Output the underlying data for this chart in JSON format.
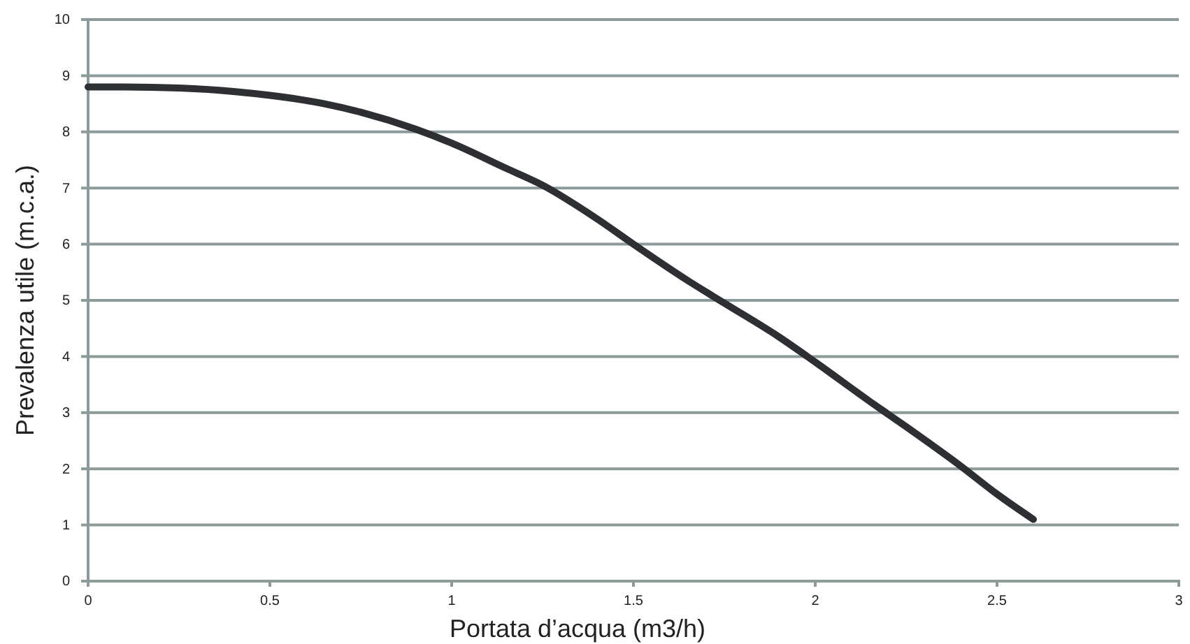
{
  "chart_data": {
    "type": "line",
    "xlabel": "Portata d’acqua (m3/h)",
    "ylabel": "Prevalenza utile (m.c.a.)",
    "x": [
      0,
      0.1,
      0.25,
      0.4,
      0.5,
      0.65,
      0.75,
      0.9,
      1,
      1.15,
      1.25,
      1.4,
      1.5,
      1.65,
      1.75,
      1.9,
      2,
      2.15,
      2.25,
      2.4,
      2.5,
      2.6
    ],
    "series": [
      {
        "color": "#2e2f33",
        "values": [
          8.8,
          8.8,
          8.78,
          8.72,
          8.65,
          8.5,
          8.35,
          8.05,
          7.8,
          7.35,
          7.05,
          6.45,
          6.0,
          5.35,
          4.95,
          4.35,
          3.9,
          3.2,
          2.75,
          2.05,
          1.55,
          1.1
        ]
      }
    ],
    "xlim": [
      0,
      3
    ],
    "xticks": [
      0,
      0.5,
      1,
      1.5,
      2,
      2.5,
      3
    ],
    "ylim": [
      0,
      10
    ],
    "yticks": [
      0,
      1,
      2,
      3,
      4,
      5,
      6,
      7,
      8,
      9,
      10
    ],
    "grid": "y",
    "marker": "none",
    "line_style": "solid"
  }
}
